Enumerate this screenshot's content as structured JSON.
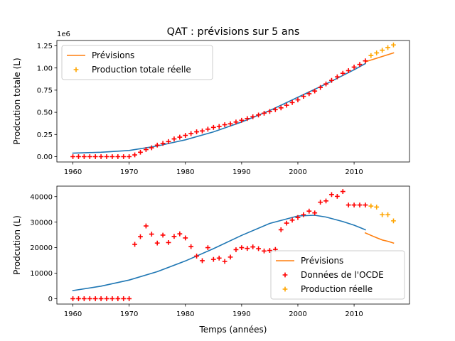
{
  "figure": {
    "title": "QAT : prévisions sur 5 ans",
    "xlabel": "Temps (années)"
  },
  "colors": {
    "fit": "#1f77b4",
    "forecast": "#ff7f0e",
    "data": "#ff0000",
    "real": "#ffa500"
  },
  "chart_data": [
    {
      "type": "line",
      "title": "QAT : prévisions sur 5 ans",
      "ylabel": "Prodcution totale (L)",
      "xlabel": "",
      "y_multiplier_label": "1e6",
      "xlim": [
        1957.15,
        2019.85
      ],
      "ylim": [
        -0.06,
        1.31
      ],
      "x_ticks": [
        1960,
        1970,
        1980,
        1990,
        2000,
        2010
      ],
      "y_ticks": [
        0.0,
        0.25,
        0.5,
        0.75,
        1.0,
        1.25
      ],
      "y_tick_labels": [
        "0.00",
        "0.25",
        "0.50",
        "0.75",
        "1.00",
        "1.25"
      ],
      "legend_position": "upper left",
      "legend": [
        {
          "label": "Prévisions",
          "kind": "line",
          "color": "#ff7f0e"
        },
        {
          "label": "Production totale réelle",
          "kind": "marker",
          "color": "#ffa500"
        }
      ],
      "series": [
        {
          "kind": "fit-line",
          "color": "#1f77b4",
          "x": [
            1960,
            1965,
            1970,
            1975,
            1980,
            1985,
            1990,
            1995,
            2000,
            2005,
            2010,
            2012
          ],
          "y": [
            0.04,
            0.05,
            0.07,
            0.12,
            0.19,
            0.28,
            0.39,
            0.52,
            0.67,
            0.82,
            0.98,
            1.05
          ]
        },
        {
          "kind": "forecast-line",
          "color": "#ff7f0e",
          "x": [
            2012,
            2013,
            2014,
            2015,
            2016,
            2017
          ],
          "y": [
            1.07,
            1.09,
            1.11,
            1.13,
            1.15,
            1.17
          ]
        },
        {
          "kind": "data-markers",
          "color": "#ff0000",
          "x": [
            1960,
            1961,
            1962,
            1963,
            1964,
            1965,
            1966,
            1967,
            1968,
            1969,
            1970,
            1971,
            1972,
            1973,
            1974,
            1975,
            1976,
            1977,
            1978,
            1979,
            1980,
            1981,
            1982,
            1983,
            1984,
            1985,
            1986,
            1987,
            1988,
            1989,
            1990,
            1991,
            1992,
            1993,
            1994,
            1995,
            1996,
            1997,
            1998,
            1999,
            2000,
            2001,
            2002,
            2003,
            2004,
            2005,
            2006,
            2007,
            2008,
            2009,
            2010,
            2011,
            2012
          ],
          "y": [
            0.0,
            0.0,
            0.0,
            0.0,
            0.0,
            0.0,
            0.0,
            0.0,
            0.0,
            0.0,
            0.0,
            0.02,
            0.05,
            0.08,
            0.1,
            0.13,
            0.15,
            0.17,
            0.2,
            0.22,
            0.24,
            0.26,
            0.28,
            0.29,
            0.31,
            0.33,
            0.34,
            0.36,
            0.37,
            0.39,
            0.41,
            0.43,
            0.45,
            0.47,
            0.49,
            0.51,
            0.53,
            0.55,
            0.58,
            0.61,
            0.64,
            0.68,
            0.71,
            0.74,
            0.78,
            0.82,
            0.86,
            0.9,
            0.94,
            0.97,
            1.01,
            1.04,
            1.08
          ]
        },
        {
          "kind": "real-markers",
          "color": "#ffa500",
          "x": [
            2013,
            2014,
            2015,
            2016,
            2017
          ],
          "y": [
            1.14,
            1.17,
            1.2,
            1.23,
            1.26
          ]
        }
      ]
    },
    {
      "type": "line",
      "title": "",
      "ylabel": "Prodcution (L)",
      "xlabel": "Temps (années)",
      "xlim": [
        1957.15,
        2019.85
      ],
      "ylim": [
        -2100,
        44100
      ],
      "x_ticks": [
        1960,
        1970,
        1980,
        1990,
        2000,
        2010
      ],
      "y_ticks": [
        0,
        10000,
        20000,
        30000,
        40000
      ],
      "y_tick_labels": [
        "0",
        "10000",
        "20000",
        "30000",
        "40000"
      ],
      "legend_position": "lower right",
      "legend": [
        {
          "label": "Prévisions",
          "kind": "line",
          "color": "#ff7f0e"
        },
        {
          "label": "Données de l'OCDE",
          "kind": "marker",
          "color": "#ff0000"
        },
        {
          "label": "Production réelle",
          "kind": "marker",
          "color": "#ffa500"
        }
      ],
      "series": [
        {
          "kind": "fit-line",
          "color": "#1f77b4",
          "x": [
            1960,
            1965,
            1970,
            1975,
            1980,
            1985,
            1990,
            1995,
            2000,
            2003,
            2005,
            2008,
            2010,
            2012
          ],
          "y": [
            3200,
            4900,
            7300,
            10600,
            14800,
            19600,
            24800,
            29500,
            32400,
            32700,
            32000,
            30200,
            28800,
            27000
          ]
        },
        {
          "kind": "forecast-line",
          "color": "#ff7f0e",
          "x": [
            2012,
            2013,
            2014,
            2015,
            2016,
            2017
          ],
          "y": [
            25800,
            24800,
            23900,
            23000,
            22500,
            21800
          ]
        },
        {
          "kind": "data-markers",
          "color": "#ff0000",
          "x": [
            1960,
            1961,
            1962,
            1963,
            1964,
            1965,
            1966,
            1967,
            1968,
            1969,
            1970,
            1971,
            1972,
            1973,
            1974,
            1975,
            1976,
            1977,
            1978,
            1979,
            1980,
            1981,
            1982,
            1983,
            1984,
            1985,
            1986,
            1987,
            1988,
            1989,
            1990,
            1991,
            1992,
            1993,
            1994,
            1995,
            1996,
            1997,
            1998,
            1999,
            2000,
            2001,
            2002,
            2003,
            2004,
            2005,
            2006,
            2007,
            2008,
            2009,
            2010,
            2011,
            2012
          ],
          "y": [
            0,
            0,
            0,
            0,
            0,
            0,
            0,
            0,
            0,
            0,
            0,
            21300,
            24300,
            28500,
            25300,
            21800,
            24900,
            22000,
            24400,
            25400,
            23800,
            20400,
            16700,
            14900,
            20000,
            15400,
            15900,
            14600,
            16300,
            19200,
            20000,
            19700,
            20300,
            19600,
            18700,
            18900,
            19300,
            27000,
            29600,
            30800,
            31800,
            32900,
            34300,
            33600,
            37800,
            38300,
            40800,
            40100,
            42000,
            36700,
            36700,
            36700,
            36700
          ]
        },
        {
          "kind": "real-markers",
          "color": "#ffa500",
          "x": [
            2013,
            2014,
            2015,
            2016,
            2017
          ],
          "y": [
            36300,
            35900,
            32900,
            32900,
            30500
          ]
        }
      ]
    }
  ]
}
